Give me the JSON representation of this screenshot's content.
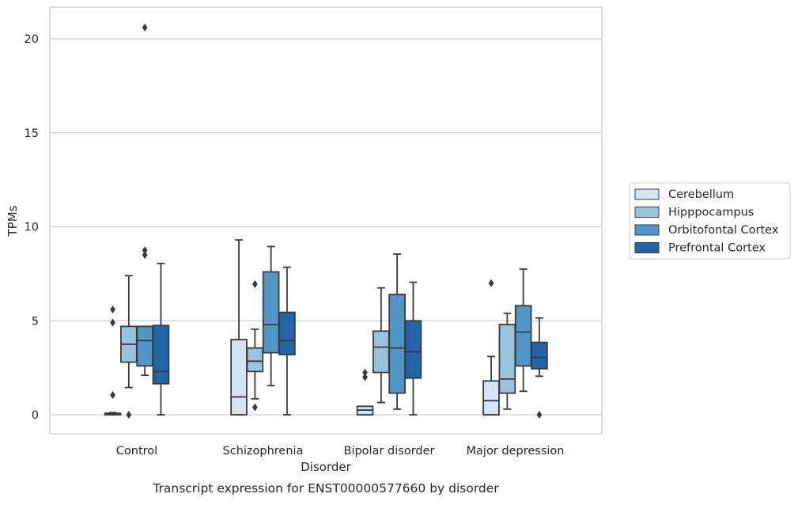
{
  "chart_data": {
    "type": "box",
    "caption": "Transcript expression for ENST00000577660 by disorder",
    "xlabel": "Disorder",
    "ylabel": "TPMs",
    "ylim": [
      -1,
      21.7
    ],
    "yticks": [
      0,
      5,
      10,
      15,
      20
    ],
    "grid": true,
    "legend_position": "right",
    "categories": [
      "Control",
      "Schizophrenia",
      "Bipolar disorder",
      "Major depression"
    ],
    "series": [
      {
        "name": "Cerebellum",
        "color": "#d3e4f2",
        "boxes": [
          {
            "whislo": 0,
            "q1": 0,
            "med": 0.05,
            "q3": 0.08,
            "whishi": 0.12,
            "fliers": [
              1.05,
              4.9,
              5.6
            ]
          },
          {
            "whislo": 0,
            "q1": 0,
            "med": 0.95,
            "q3": 4.0,
            "whishi": 9.3,
            "fliers": []
          },
          {
            "whislo": 0,
            "q1": 0,
            "med": 0.25,
            "q3": 0.45,
            "whishi": 0.45,
            "fliers": [
              2.0,
              2.25
            ]
          },
          {
            "whislo": 0,
            "q1": 0,
            "med": 0.75,
            "q3": 1.8,
            "whishi": 3.1,
            "fliers": [
              7.0
            ]
          }
        ]
      },
      {
        "name": "Hipppocampus",
        "color": "#99c4de",
        "boxes": [
          {
            "whislo": 1.45,
            "q1": 2.8,
            "med": 3.75,
            "q3": 4.7,
            "whishi": 7.4,
            "fliers": [
              0
            ]
          },
          {
            "whislo": 0.85,
            "q1": 2.3,
            "med": 2.85,
            "q3": 3.55,
            "whishi": 4.55,
            "fliers": [
              0.4,
              6.95
            ]
          },
          {
            "whislo": 0.65,
            "q1": 2.25,
            "med": 3.6,
            "q3": 4.45,
            "whishi": 6.75,
            "fliers": []
          },
          {
            "whislo": 0.3,
            "q1": 1.15,
            "med": 1.9,
            "q3": 4.8,
            "whishi": 5.4,
            "fliers": []
          }
        ]
      },
      {
        "name": "Orbitofontal Cortex",
        "color": "#5096c6",
        "boxes": [
          {
            "whislo": 2.1,
            "q1": 2.6,
            "med": 3.95,
            "q3": 4.7,
            "whishi": 4.7,
            "fliers": [
              8.5,
              8.75,
              20.6
            ]
          },
          {
            "whislo": 1.55,
            "q1": 3.3,
            "med": 4.8,
            "q3": 7.6,
            "whishi": 8.95,
            "fliers": []
          },
          {
            "whislo": 0.3,
            "q1": 1.15,
            "med": 3.55,
            "q3": 6.4,
            "whishi": 8.55,
            "fliers": []
          },
          {
            "whislo": 1.25,
            "q1": 2.6,
            "med": 4.4,
            "q3": 5.8,
            "whishi": 7.75,
            "fliers": []
          }
        ]
      },
      {
        "name": "Prefrontal Cortex",
        "color": "#2464ab",
        "boxes": [
          {
            "whislo": 0,
            "q1": 1.65,
            "med": 2.3,
            "q3": 4.75,
            "whishi": 8.05,
            "fliers": []
          },
          {
            "whislo": 0,
            "q1": 3.2,
            "med": 3.95,
            "q3": 5.45,
            "whishi": 7.85,
            "fliers": []
          },
          {
            "whislo": 0,
            "q1": 1.95,
            "med": 3.35,
            "q3": 5.0,
            "whishi": 7.05,
            "fliers": []
          },
          {
            "whislo": 2.05,
            "q1": 2.45,
            "med": 3.05,
            "q3": 3.85,
            "whishi": 5.15,
            "fliers": [
              0
            ]
          }
        ]
      }
    ]
  }
}
